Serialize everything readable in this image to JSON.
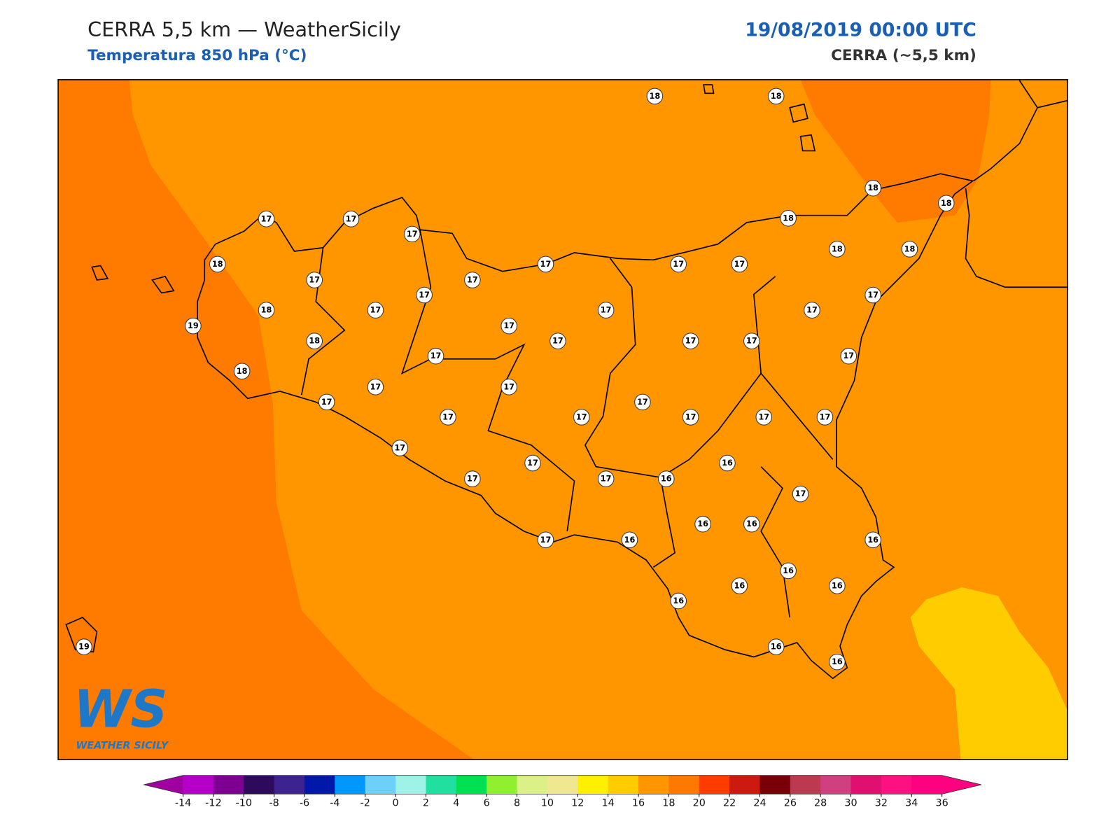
{
  "header": {
    "title": "CERRA 5,5 km — WeatherSicily",
    "subtitle": "Temperatura 850 hPa (°C)",
    "date": "19/08/2019 00:00 UTC",
    "model": "CERRA (~5,5 km)"
  },
  "stations": [
    18,
    18,
    18,
    18,
    18,
    18,
    18,
    17,
    17,
    17,
    18,
    17,
    17,
    17,
    17,
    17,
    17,
    17,
    18,
    17,
    17,
    17,
    19,
    17,
    18,
    17,
    17,
    17,
    17,
    17,
    18,
    17,
    17,
    17,
    17,
    17,
    17,
    17,
    17,
    17,
    17,
    17,
    16,
    17,
    17,
    16,
    17,
    16,
    16,
    17,
    16,
    16,
    16,
    16,
    16,
    16,
    16,
    19,
    16
  ],
  "colorbar": {
    "ticks": [
      -14,
      -12,
      -10,
      -8,
      -6,
      -4,
      -2,
      0,
      2,
      4,
      6,
      8,
      10,
      12,
      14,
      16,
      18,
      20,
      22,
      24,
      26,
      28,
      30,
      32,
      34,
      36
    ],
    "colors": [
      "#b400c8",
      "#7e0090",
      "#2e0a5c",
      "#3c2390",
      "#0018a8",
      "#0098ff",
      "#6cd0f8",
      "#9ff2e8",
      "#20e0a0",
      "#00e050",
      "#90f030",
      "#dcf088",
      "#f0e890",
      "#fff000",
      "#ffcc00",
      "#ff9600",
      "#ff7800",
      "#ff3c00",
      "#cc1a10",
      "#7a0008",
      "#bc3a50",
      "#d04080",
      "#e01070",
      "#ff1080",
      "#ff0080"
    ],
    "under": "#a000a0",
    "over": "#ff0080"
  },
  "logo": {
    "mark": "WS",
    "name": "WEATHER SICILY"
  }
}
